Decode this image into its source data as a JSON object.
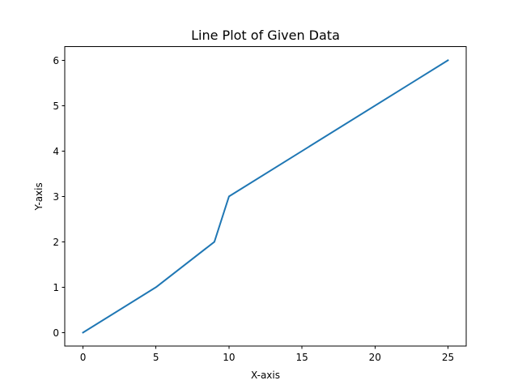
{
  "chart_data": {
    "type": "line",
    "title": "Line Plot of Given Data",
    "xlabel": "X-axis",
    "ylabel": "Y-axis",
    "xlim": [
      -1.25,
      26.25
    ],
    "ylim": [
      -0.3,
      6.3
    ],
    "x_ticks": [
      0,
      5,
      10,
      15,
      20,
      25
    ],
    "y_ticks": [
      0,
      1,
      2,
      3,
      4,
      5,
      6
    ],
    "grid": false,
    "legend": "none",
    "series": [
      {
        "color": "#1f77b4",
        "x": [
          0,
          5,
          9,
          10,
          25
        ],
        "y": [
          0,
          1,
          2,
          3,
          6
        ]
      }
    ]
  }
}
